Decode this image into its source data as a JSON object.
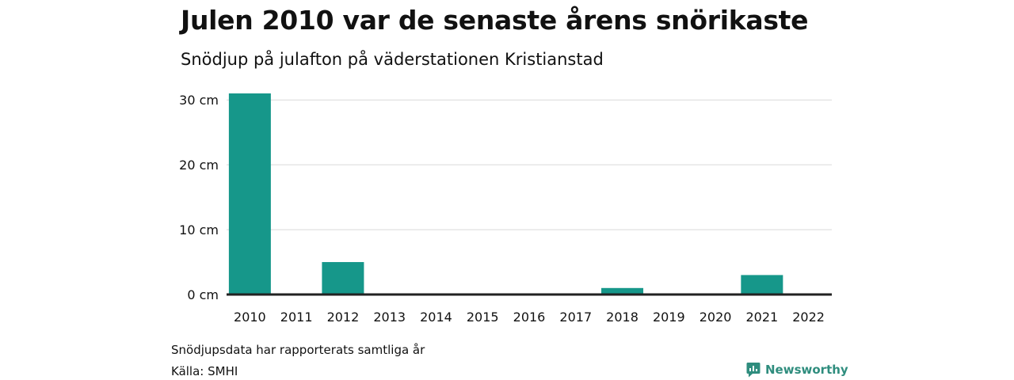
{
  "header": {
    "title": "Julen 2010 var de senaste årens snörikaste",
    "subtitle": "Snödjup på julafton på väderstationen Kristianstad"
  },
  "footer": {
    "note": "Snödjupsdata har rapporterats samtliga år",
    "source": "Källa: SMHI",
    "brand": "Newsworthy",
    "brand_icon": "newsworthy-logo-icon"
  },
  "colors": {
    "bar": "#16978a",
    "grid": "#d9d9d9",
    "baseline": "#222222",
    "brand": "#2f8d7e"
  },
  "chart_data": {
    "type": "bar",
    "categories": [
      "2010",
      "2011",
      "2012",
      "2013",
      "2014",
      "2015",
      "2016",
      "2017",
      "2018",
      "2019",
      "2020",
      "2021",
      "2022"
    ],
    "values": [
      31,
      0,
      5,
      0,
      0,
      0,
      0,
      0,
      1,
      0,
      0,
      3,
      0
    ],
    "yticks": [
      0,
      10,
      20,
      30
    ],
    "ytick_labels": [
      "0 cm",
      "10 cm",
      "20 cm",
      "30 cm"
    ],
    "ylim": [
      0,
      31
    ],
    "grid": true
  }
}
